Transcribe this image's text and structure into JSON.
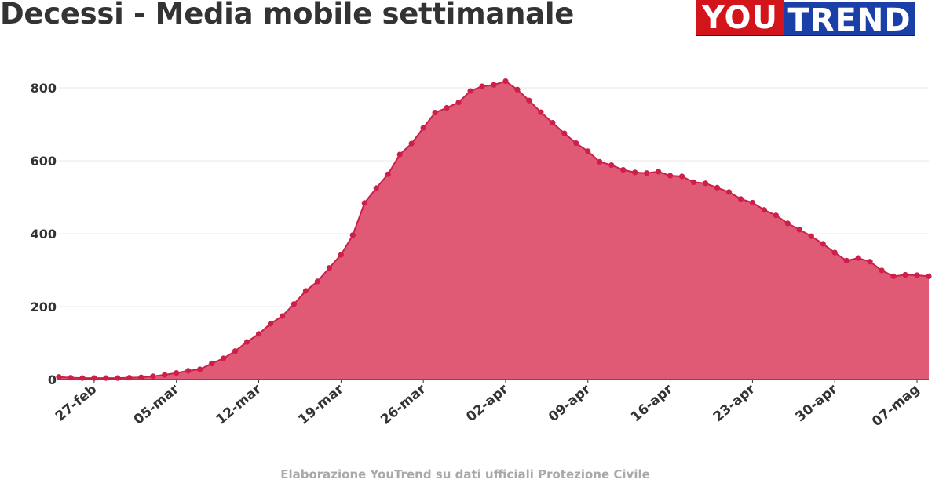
{
  "header": {
    "title": "Decessi - Media mobile settimanale"
  },
  "logo": {
    "part1": "YOU",
    "part2": "TREND",
    "colors": {
      "red": "#d4141b",
      "blue": "#1a3fa8"
    }
  },
  "source": "Elaborazione YouTrend su dati ufficiali Protezione Civile",
  "chart_data": {
    "type": "area",
    "title": "Decessi - Media mobile settimanale",
    "xlabel": "",
    "ylabel": "",
    "ylim": [
      0,
      830
    ],
    "yticks": [
      0,
      200,
      400,
      600,
      800
    ],
    "grid": true,
    "color": "#e05a75",
    "line_color": "#cc1f4a",
    "x_start_date": "2020-02-24",
    "xticks": [
      {
        "date": "2020-02-27",
        "label": "27-feb"
      },
      {
        "date": "2020-03-05",
        "label": "05-mar"
      },
      {
        "date": "2020-03-12",
        "label": "12-mar"
      },
      {
        "date": "2020-03-19",
        "label": "19-mar"
      },
      {
        "date": "2020-03-26",
        "label": "26-mar"
      },
      {
        "date": "2020-04-02",
        "label": "02-apr"
      },
      {
        "date": "2020-04-09",
        "label": "09-apr"
      },
      {
        "date": "2020-04-16",
        "label": "16-apr"
      },
      {
        "date": "2020-04-23",
        "label": "23-apr"
      },
      {
        "date": "2020-04-30",
        "label": "30-apr"
      },
      {
        "date": "2020-05-07",
        "label": "07-mag"
      }
    ],
    "series": [
      {
        "values": [
          7,
          5,
          4,
          4,
          4,
          4,
          5,
          6,
          9,
          13,
          18,
          24,
          28,
          44,
          58,
          78,
          103,
          125,
          153,
          174,
          207,
          243,
          269,
          306,
          342,
          396,
          484,
          525,
          563,
          617,
          647,
          690,
          732,
          745,
          760,
          791,
          804,
          808,
          818,
          795,
          765,
          733,
          704,
          675,
          648,
          626,
          597,
          588,
          575,
          568,
          566,
          570,
          559,
          557,
          541,
          538,
          526,
          514,
          495,
          485,
          465,
          450,
          428,
          411,
          393,
          372,
          348,
          326,
          333,
          323,
          299,
          283,
          287,
          286,
          283
        ]
      }
    ]
  }
}
